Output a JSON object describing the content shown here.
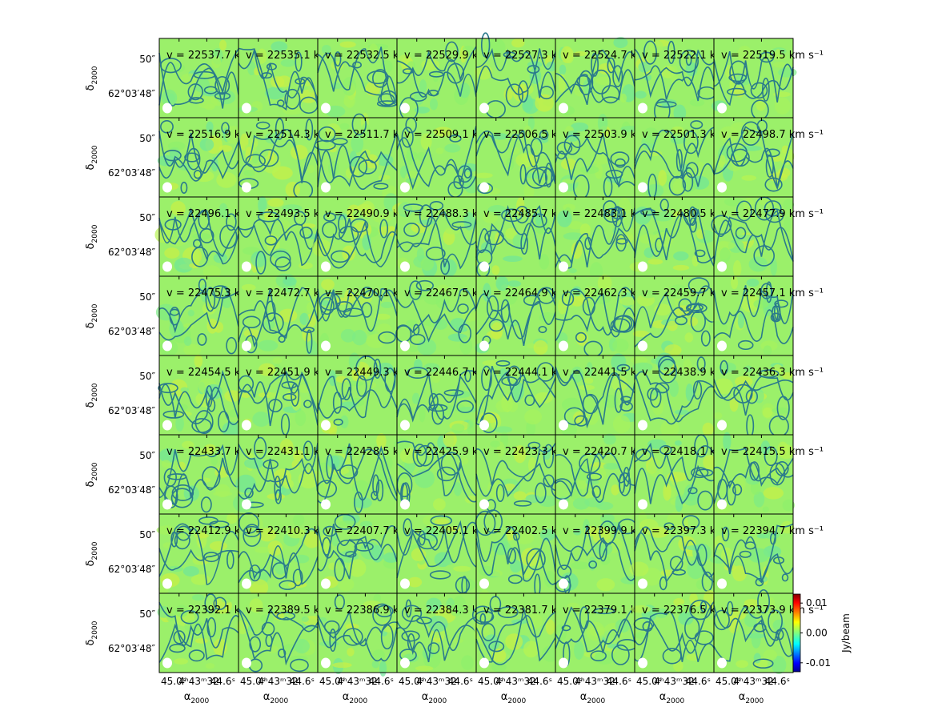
{
  "chart_data": {
    "type": "heatmap",
    "description_layout": "channel map grid",
    "grid_rows": 8,
    "grid_cols": 8,
    "velocity_prefix": "v = ",
    "velocity_unit": "km s⁻¹",
    "velocities": [
      [
        22537.7,
        22535.1,
        22532.5,
        22529.9,
        22527.3,
        22524.7,
        22522.1,
        22519.5
      ],
      [
        22516.9,
        22514.3,
        22511.7,
        22509.1,
        22506.5,
        22503.9,
        22501.3,
        22498.7
      ],
      [
        22496.1,
        22493.5,
        22490.9,
        22488.3,
        22485.7,
        22483.1,
        22480.5,
        22477.9
      ],
      [
        22475.3,
        22472.7,
        22470.1,
        22467.5,
        22464.9,
        22462.3,
        22459.7,
        22457.1
      ],
      [
        22454.5,
        22451.9,
        22449.3,
        22446.7,
        22444.1,
        22441.5,
        22438.9,
        22436.3
      ],
      [
        22433.7,
        22431.1,
        22428.5,
        22425.9,
        22423.3,
        22420.7,
        22418.1,
        22415.5
      ],
      [
        22412.9,
        22410.3,
        22407.7,
        22405.1,
        22402.5,
        22399.9,
        22397.3,
        22394.7
      ],
      [
        22392.1,
        22389.5,
        22386.9,
        22384.3,
        22381.7,
        22379.1,
        22376.5,
        22373.9
      ]
    ],
    "ylabel": "δ",
    "ylabel_sub": "2000",
    "xlabel": "α",
    "xlabel_sub": "2000",
    "y_ticks": [
      "50″",
      "62°03′48″"
    ],
    "x_ticks": [
      "45.0ˢ",
      "4ʰ43ᵐ32",
      "44.6ˢ"
    ],
    "x_tick_last_col": [
      "45.0ˢ",
      "4ʰ43ᵐ32",
      "44.6ˢ"
    ],
    "colorbar": {
      "label": "Jy/beam",
      "range": [
        -0.013,
        0.013
      ],
      "ticks": [
        "0.01",
        "0.00",
        "-0.01"
      ],
      "tick_values": [
        0.01,
        0.0,
        -0.01
      ],
      "colormap": "jet"
    },
    "colors": {
      "background_field": "#9bf06a",
      "contour": "#2a7a8c",
      "beam": "#ffffff"
    }
  }
}
